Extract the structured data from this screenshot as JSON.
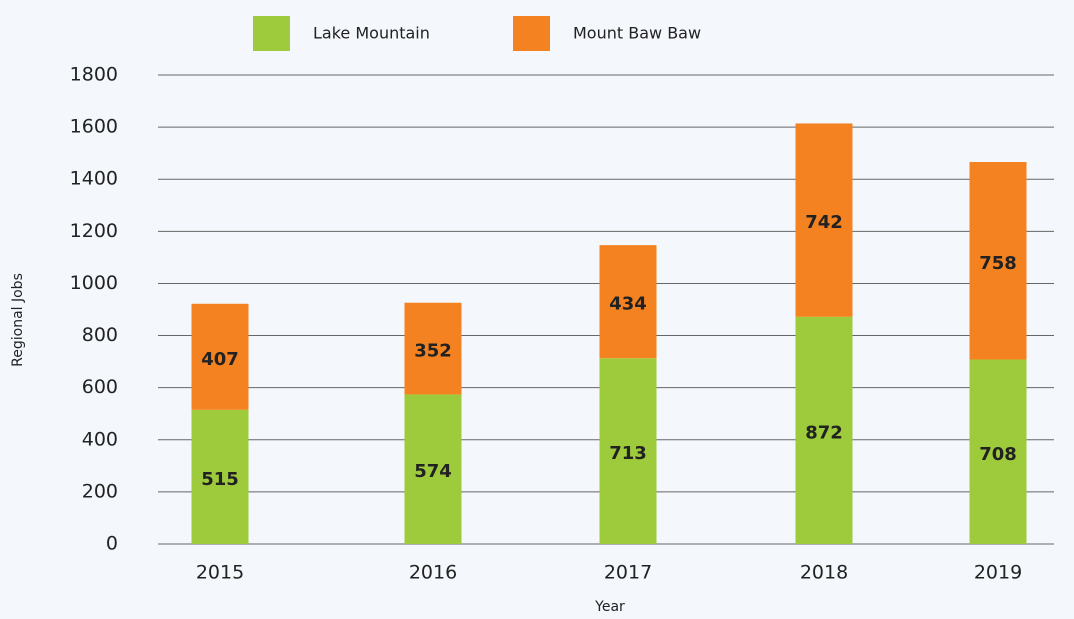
{
  "chart_data": {
    "type": "stacked_bar",
    "x_label": "Year",
    "y_label": "Regional Jobs",
    "categories": [
      "2015",
      "2016",
      "2017",
      "2018",
      "2019"
    ],
    "series": [
      {
        "name": "Lake Mountain",
        "color": "#9dcb3c",
        "values": [
          515,
          574,
          713,
          872,
          708
        ]
      },
      {
        "name": "Mount Baw Baw",
        "color": "#f58220",
        "values": [
          407,
          352,
          434,
          742,
          758
        ]
      }
    ],
    "ylim": [
      0,
      1800
    ],
    "yticks": [
      0,
      200,
      400,
      600,
      800,
      1000,
      1200,
      1400,
      1600,
      1800
    ],
    "grid": true,
    "legend": "top"
  }
}
